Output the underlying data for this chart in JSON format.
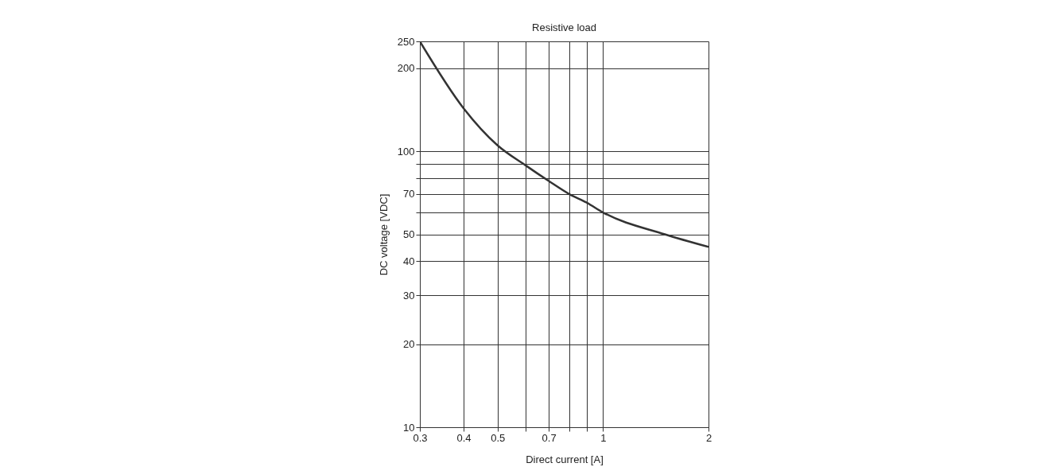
{
  "chart_data": {
    "type": "line",
    "title": "Resistive load",
    "xlabel": "Direct current [A]",
    "ylabel": "DC voltage [VDC]",
    "x": [
      0.3,
      0.4,
      0.5,
      0.6,
      0.7,
      0.8,
      0.9,
      1,
      1.5,
      2
    ],
    "series": [
      {
        "color": "#333333",
        "values": [
          250,
          143,
          105,
          89,
          78,
          70,
          65,
          60,
          50,
          45
        ]
      }
    ],
    "log": "xy",
    "xlim": [
      0.3,
      2
    ],
    "ylim": [
      10,
      250
    ],
    "xticks": [
      0.3,
      0.4,
      0.5,
      {
        "value": 0.6,
        "label": null
      },
      0.7,
      {
        "value": 0.8,
        "label": null
      },
      {
        "value": 0.9,
        "label": null
      },
      1,
      2
    ],
    "yticks": [
      10,
      20,
      30,
      40,
      50,
      {
        "value": 60,
        "label": null
      },
      70,
      {
        "value": 80,
        "label": null
      },
      {
        "value": 90,
        "label": null
      },
      100,
      200,
      250
    ],
    "grid": true,
    "marker": "none",
    "line_style": "solid"
  }
}
